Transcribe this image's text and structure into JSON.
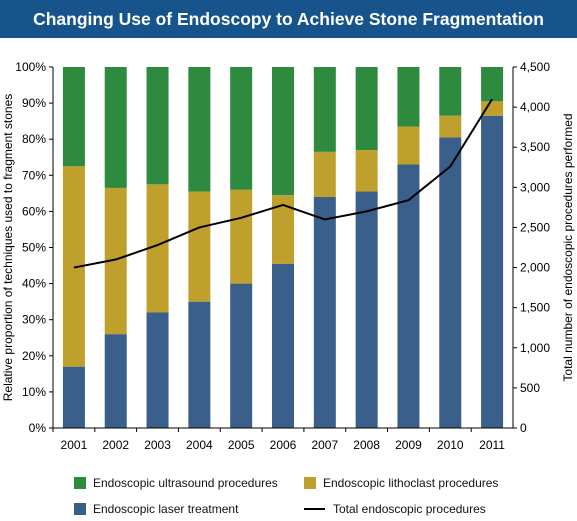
{
  "title": "Changing Use of Endoscopy to Achieve Stone Fragmentation",
  "colors": {
    "laser": "#3a5f8b",
    "lithoclast": "#bfa02c",
    "ultrasound": "#2e8a3e",
    "total": "#000000",
    "title_bg": "#17548c"
  },
  "legend": {
    "ultrasound": "Endoscopic ultrasound procedures",
    "lithoclast": "Endoscopic lithoclast procedures",
    "laser": "Endoscopic laser treatment",
    "total": "Total endoscopic procedures"
  },
  "chart_data": {
    "type": "bar",
    "stacked": true,
    "categories": [
      "2001",
      "2002",
      "2003",
      "2004",
      "2005",
      "2006",
      "2007",
      "2008",
      "2009",
      "2010",
      "2011"
    ],
    "series": [
      {
        "name": "Endoscopic laser treatment",
        "axis": "left",
        "values": [
          17,
          26,
          32,
          35,
          40,
          45.5,
          64,
          65.5,
          73,
          80.5,
          86.5
        ]
      },
      {
        "name": "Endoscopic lithoclast procedures",
        "axis": "left",
        "values": [
          55.5,
          40.5,
          35.5,
          30.5,
          26,
          19,
          12.5,
          11.5,
          10.5,
          6,
          4
        ]
      },
      {
        "name": "Endoscopic ultrasound procedures",
        "axis": "left",
        "values": [
          27.5,
          33.5,
          32.5,
          34.5,
          34,
          35.5,
          23.5,
          23,
          16.5,
          13.5,
          9.5
        ]
      },
      {
        "name": "Total endoscopic procedures",
        "type": "line",
        "axis": "right",
        "values": [
          2000,
          2100,
          2280,
          2500,
          2620,
          2780,
          2600,
          2700,
          2840,
          3260,
          4100
        ]
      }
    ],
    "ylabel": "Relative proportion of techniques used to fragment stones",
    "y2label": "Total number of endoscopic procedures performed",
    "ylim": [
      0,
      100
    ],
    "y2lim": [
      0,
      4500
    ],
    "yticks": [
      "0%",
      "10%",
      "20%",
      "30%",
      "40%",
      "50%",
      "60%",
      "70%",
      "80%",
      "90%",
      "100%"
    ],
    "y2ticks": [
      "0",
      "500",
      "1,000",
      "1,500",
      "2,000",
      "2,500",
      "3,000",
      "3,500",
      "4,000",
      "4,500"
    ],
    "grid": false,
    "legend_position": "bottom"
  }
}
